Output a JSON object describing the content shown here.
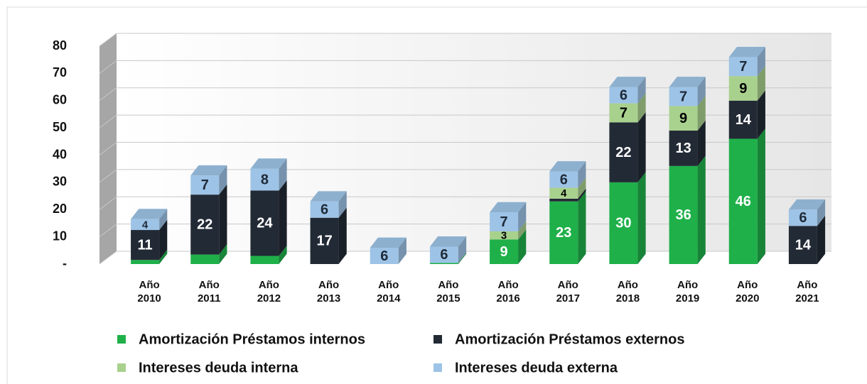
{
  "chart_data": {
    "type": "bar3d_stacked",
    "categories": [
      "Año 2010",
      "Año 2011",
      "Año 2012",
      "Año 2013",
      "Año 2014",
      "Año 2015",
      "Año 2016",
      "Año 2017",
      "Año 2018",
      "Año 2019",
      "Año 2020",
      "Año 2021"
    ],
    "series": [
      {
        "name": "Amortización Préstamos internos",
        "color": "#1fb04a",
        "label_color": "#ffffff",
        "values": [
          1.5,
          3.5,
          3,
          0,
          0,
          0.4,
          9,
          23,
          30,
          36,
          46,
          0
        ],
        "value_labels": [
          null,
          null,
          null,
          null,
          null,
          null,
          "9",
          "23",
          "30",
          "36",
          "46",
          null
        ]
      },
      {
        "name": "Amortización Préstamos externos",
        "color": "#222a35",
        "label_color": "#ffffff",
        "values": [
          11,
          22,
          24,
          17,
          0,
          0,
          0,
          1,
          22,
          13,
          14,
          14
        ],
        "value_labels": [
          "11",
          "22",
          "24",
          "17",
          null,
          null,
          null,
          null,
          "22",
          "13",
          "14",
          "14"
        ]
      },
      {
        "name": "Intereses deuda interna",
        "color": "#a9d18e",
        "label_color": "#000000",
        "values": [
          0,
          0,
          0,
          0,
          0,
          0,
          3,
          4,
          7,
          9,
          9,
          0
        ],
        "value_labels": [
          null,
          null,
          null,
          null,
          null,
          null,
          "3",
          "4",
          "7",
          "9",
          "9",
          null
        ]
      },
      {
        "name": "Intereses deuda externa",
        "color": "#9dc3e6",
        "label_color": "#1f2a38",
        "values": [
          4,
          7,
          8,
          6,
          6,
          6,
          7,
          6,
          6,
          7,
          7,
          6
        ],
        "value_labels": [
          "4",
          "7",
          "8",
          "6",
          "6",
          "6",
          "7",
          "6",
          "6",
          "7",
          "7",
          "6"
        ]
      }
    ],
    "ylim": [
      0,
      80
    ],
    "yticks": [
      {
        "value": 0,
        "label": "-"
      },
      10,
      20,
      30,
      40,
      50,
      60,
      70,
      80
    ],
    "grid": true
  }
}
